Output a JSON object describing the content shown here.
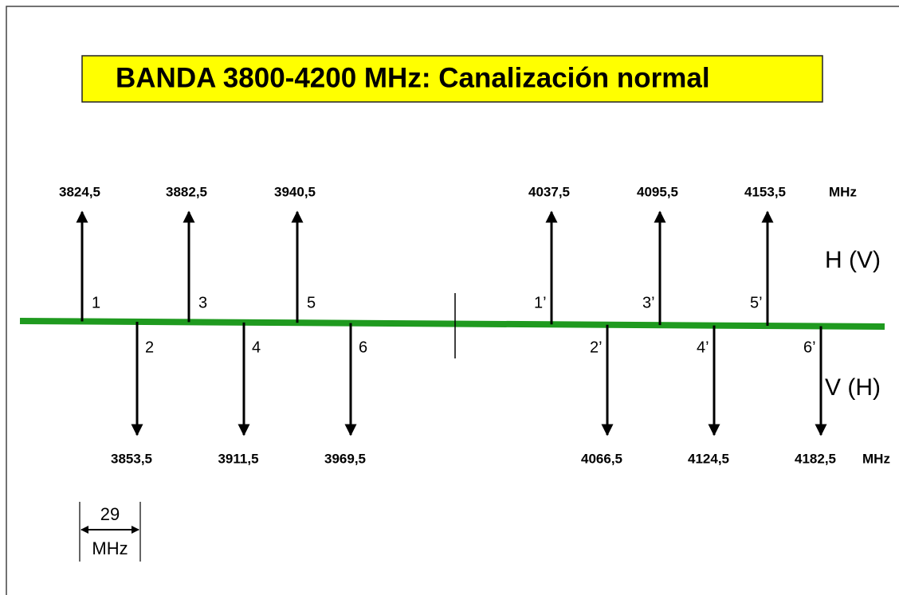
{
  "title": "BANDA 3800-4200 MHz: Canalización normal",
  "upper_channels": [
    {
      "number": "1",
      "frequency": "3824,5"
    },
    {
      "number": "3",
      "frequency": "3882,5"
    },
    {
      "number": "5",
      "frequency": "3940,5"
    },
    {
      "number": "1’",
      "frequency": "4037,5"
    },
    {
      "number": "3’",
      "frequency": "4095,5"
    },
    {
      "number": "5’",
      "frequency": "4153,5"
    }
  ],
  "lower_channels": [
    {
      "number": "2",
      "frequency": "3853,5"
    },
    {
      "number": "4",
      "frequency": "3911,5"
    },
    {
      "number": "6",
      "frequency": "3969,5"
    },
    {
      "number": "2’",
      "frequency": "4066,5"
    },
    {
      "number": "4’",
      "frequency": "4124,5"
    },
    {
      "number": "6’",
      "frequency": "4182,5"
    }
  ],
  "upper_unit": "MHz",
  "lower_unit": "MHz",
  "upper_polarization": "H (V)",
  "lower_polarization": "V (H)",
  "spacing": {
    "value": "29",
    "unit": "MHz"
  }
}
